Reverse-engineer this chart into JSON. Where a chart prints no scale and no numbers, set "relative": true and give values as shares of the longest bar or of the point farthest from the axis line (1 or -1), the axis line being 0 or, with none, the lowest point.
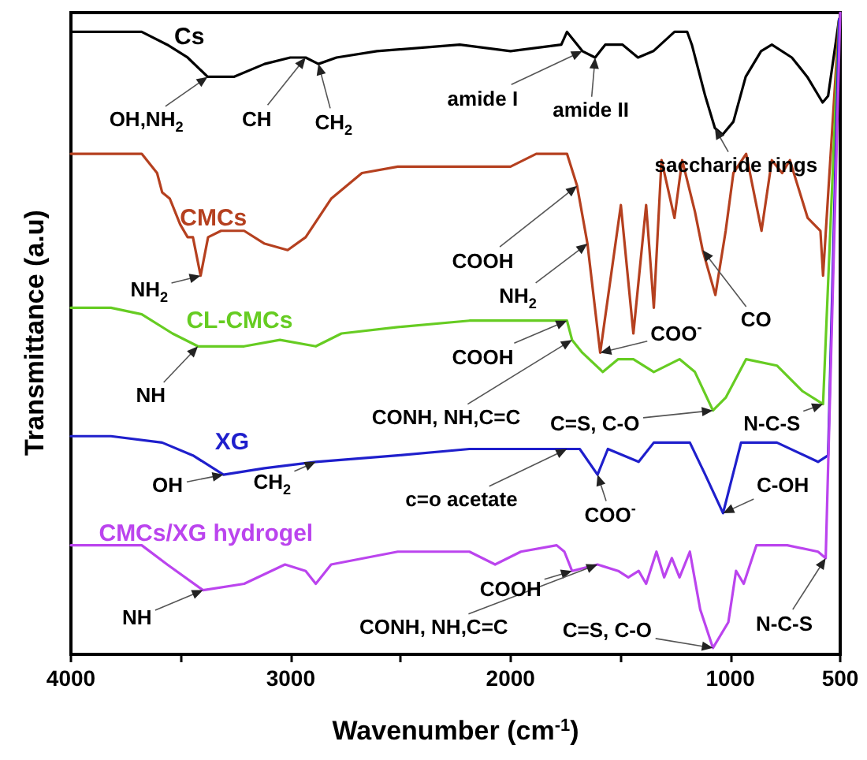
{
  "chart_data": {
    "type": "line",
    "relative": true,
    "xlabel": "Wavenumber (cm$^{-1}$)",
    "ylabel": "Transmittance (a.u)",
    "xlim": [
      4000,
      500
    ],
    "xticks": [
      4000,
      {
        "value": 3500,
        "label": null
      },
      3000,
      {
        "value": 2500,
        "label": null
      },
      2000,
      {
        "value": 1500,
        "label": null
      },
      1000,
      500
    ],
    "series": [
      {
        "name": "Cs",
        "color": "#000000",
        "x": [
          4000,
          3818,
          3678,
          3562,
          3469,
          3378,
          3259,
          3119,
          3002,
          2932,
          2874,
          2792,
          2608,
          2231,
          2000,
          1769,
          1743,
          1673,
          1615,
          1569,
          1490,
          1420,
          1350,
          1254,
          1196,
          1175,
          1114,
          1070,
          1035,
          986,
          930,
          860,
          811,
          720,
          650,
          580,
          555,
          505
        ],
        "values": [
          0.97,
          0.97,
          0.97,
          0.95,
          0.93,
          0.9,
          0.9,
          0.92,
          0.93,
          0.93,
          0.92,
          0.93,
          0.94,
          0.95,
          0.94,
          0.95,
          0.97,
          0.94,
          0.93,
          0.95,
          0.95,
          0.93,
          0.94,
          0.97,
          0.97,
          0.95,
          0.87,
          0.82,
          0.81,
          0.83,
          0.9,
          0.94,
          0.95,
          0.93,
          0.9,
          0.86,
          0.87,
          0.99
        ]
      },
      {
        "name": "CMCs",
        "color": "#b5401f",
        "x": [
          4000,
          3818,
          3678,
          3608,
          3585,
          3550,
          3503,
          3469,
          3445,
          3410,
          3376,
          3317,
          3212,
          3119,
          3014,
          2932,
          2816,
          2676,
          2513,
          2233,
          2000,
          1883,
          1743,
          1697,
          1650,
          1592,
          1498,
          1441,
          1383,
          1348,
          1313,
          1254,
          1219,
          1161,
          1126,
          1068,
          1021,
          986,
          928,
          858,
          811,
          764,
          729,
          648,
          590,
          578,
          505
        ],
        "values": [
          0.78,
          0.78,
          0.78,
          0.75,
          0.72,
          0.71,
          0.67,
          0.65,
          0.65,
          0.59,
          0.65,
          0.66,
          0.66,
          0.64,
          0.63,
          0.65,
          0.71,
          0.75,
          0.76,
          0.76,
          0.76,
          0.78,
          0.78,
          0.73,
          0.64,
          0.47,
          0.7,
          0.5,
          0.7,
          0.54,
          0.77,
          0.68,
          0.77,
          0.69,
          0.63,
          0.56,
          0.66,
          0.75,
          0.78,
          0.66,
          0.77,
          0.75,
          0.77,
          0.68,
          0.66,
          0.59,
          0.99
        ]
      },
      {
        "name": "CL-CMCs",
        "color": "#66cc22",
        "x": [
          4000,
          3818,
          3678,
          3538,
          3422,
          3212,
          3049,
          2886,
          2769,
          2513,
          2187,
          1860,
          1743,
          1720,
          1673,
          1580,
          1510,
          1441,
          1348,
          1231,
          1161,
          1079,
          1021,
          928,
          788,
          671,
          578,
          505
        ],
        "values": [
          0.54,
          0.54,
          0.53,
          0.5,
          0.48,
          0.48,
          0.49,
          0.48,
          0.5,
          0.51,
          0.52,
          0.52,
          0.52,
          0.49,
          0.47,
          0.44,
          0.46,
          0.46,
          0.44,
          0.46,
          0.44,
          0.38,
          0.4,
          0.46,
          0.45,
          0.41,
          0.39,
          0.99
        ]
      },
      {
        "name": "XG",
        "color": "#1f1fcc",
        "x": [
          4000,
          3818,
          3585,
          3445,
          3306,
          3119,
          2886,
          2513,
          2187,
          2000,
          1813,
          1743,
          1685,
          1604,
          1557,
          1417,
          1348,
          1184,
          1114,
          1033,
          951,
          788,
          601,
          555,
          505
        ],
        "values": [
          0.34,
          0.34,
          0.33,
          0.31,
          0.28,
          0.29,
          0.3,
          0.31,
          0.32,
          0.32,
          0.32,
          0.32,
          0.32,
          0.28,
          0.32,
          0.3,
          0.33,
          0.33,
          0.28,
          0.22,
          0.33,
          0.33,
          0.3,
          0.31,
          0.99
        ]
      },
      {
        "name": "CMCs/XG hydrogel",
        "color": "#bb44ee",
        "x": [
          4000,
          3818,
          3678,
          3562,
          3399,
          3212,
          3026,
          2932,
          2886,
          2816,
          2513,
          2187,
          2070,
          1953,
          1790,
          1755,
          1720,
          1604,
          1510,
          1464,
          1417,
          1383,
          1336,
          1301,
          1266,
          1231,
          1184,
          1137,
          1079,
          1009,
          974,
          939,
          881,
          741,
          601,
          566,
          500
        ],
        "values": [
          0.17,
          0.17,
          0.17,
          0.14,
          0.1,
          0.11,
          0.14,
          0.13,
          0.11,
          0.14,
          0.16,
          0.16,
          0.14,
          0.16,
          0.17,
          0.16,
          0.13,
          0.14,
          0.13,
          0.12,
          0.13,
          0.11,
          0.16,
          0.12,
          0.15,
          0.12,
          0.16,
          0.07,
          0.01,
          0.05,
          0.13,
          0.11,
          0.17,
          0.17,
          0.16,
          0.15,
          1
        ]
      }
    ],
    "annotations": [
      {
        "text": "OH,NH$_{2}$",
        "x": 3378,
        "y": 0.9
      },
      {
        "text": "CH",
        "x": 2932,
        "y": 0.93
      },
      {
        "text": "CH$_{2}$",
        "x": 2874,
        "y": 0.92
      },
      {
        "text": "amide I",
        "x": 1673,
        "y": 0.94
      },
      {
        "text": "amide II",
        "x": 1615,
        "y": 0.93
      },
      {
        "text": "saccharide rings",
        "x": 1070,
        "y": 0.82
      },
      {
        "text": "COOH",
        "x": 1697,
        "y": 0.73
      },
      {
        "text": "NH$_{2}$",
        "x": 3410,
        "y": 0.59
      },
      {
        "text": "NH$_{2}$",
        "x": 1650,
        "y": 0.64
      },
      {
        "text": "COO$^{-}$",
        "x": 1592,
        "y": 0.47
      },
      {
        "text": "CO",
        "x": 1126,
        "y": 0.63
      },
      {
        "text": "NH",
        "x": 3422,
        "y": 0.48
      },
      {
        "text": "COOH",
        "x": 1743,
        "y": 0.52
      },
      {
        "text": "CONH, NH,C=C",
        "x": 1720,
        "y": 0.49
      },
      {
        "text": "C=S, C-O",
        "x": 1079,
        "y": 0.38
      },
      {
        "text": "N-C-S",
        "x": 578,
        "y": 0.39
      },
      {
        "text": "OH",
        "x": 3306,
        "y": 0.28
      },
      {
        "text": "CH$_{2}$",
        "x": 2886,
        "y": 0.3
      },
      {
        "text": "c=o acetate",
        "x": 1743,
        "y": 0.32
      },
      {
        "text": "COO$^{-}$",
        "x": 1604,
        "y": 0.28
      },
      {
        "text": "C-OH",
        "x": 1033,
        "y": 0.22
      },
      {
        "text": "NH",
        "x": 3399,
        "y": 0.1
      },
      {
        "text": "COOH",
        "x": 1720,
        "y": 0.13
      },
      {
        "text": "CONH, NH,C=C",
        "x": 1604,
        "y": 0.14
      },
      {
        "text": "C=S, C-O",
        "x": 1079,
        "y": 0.01
      },
      {
        "text": "N-C-S",
        "x": 566,
        "y": 0.15
      }
    ]
  }
}
